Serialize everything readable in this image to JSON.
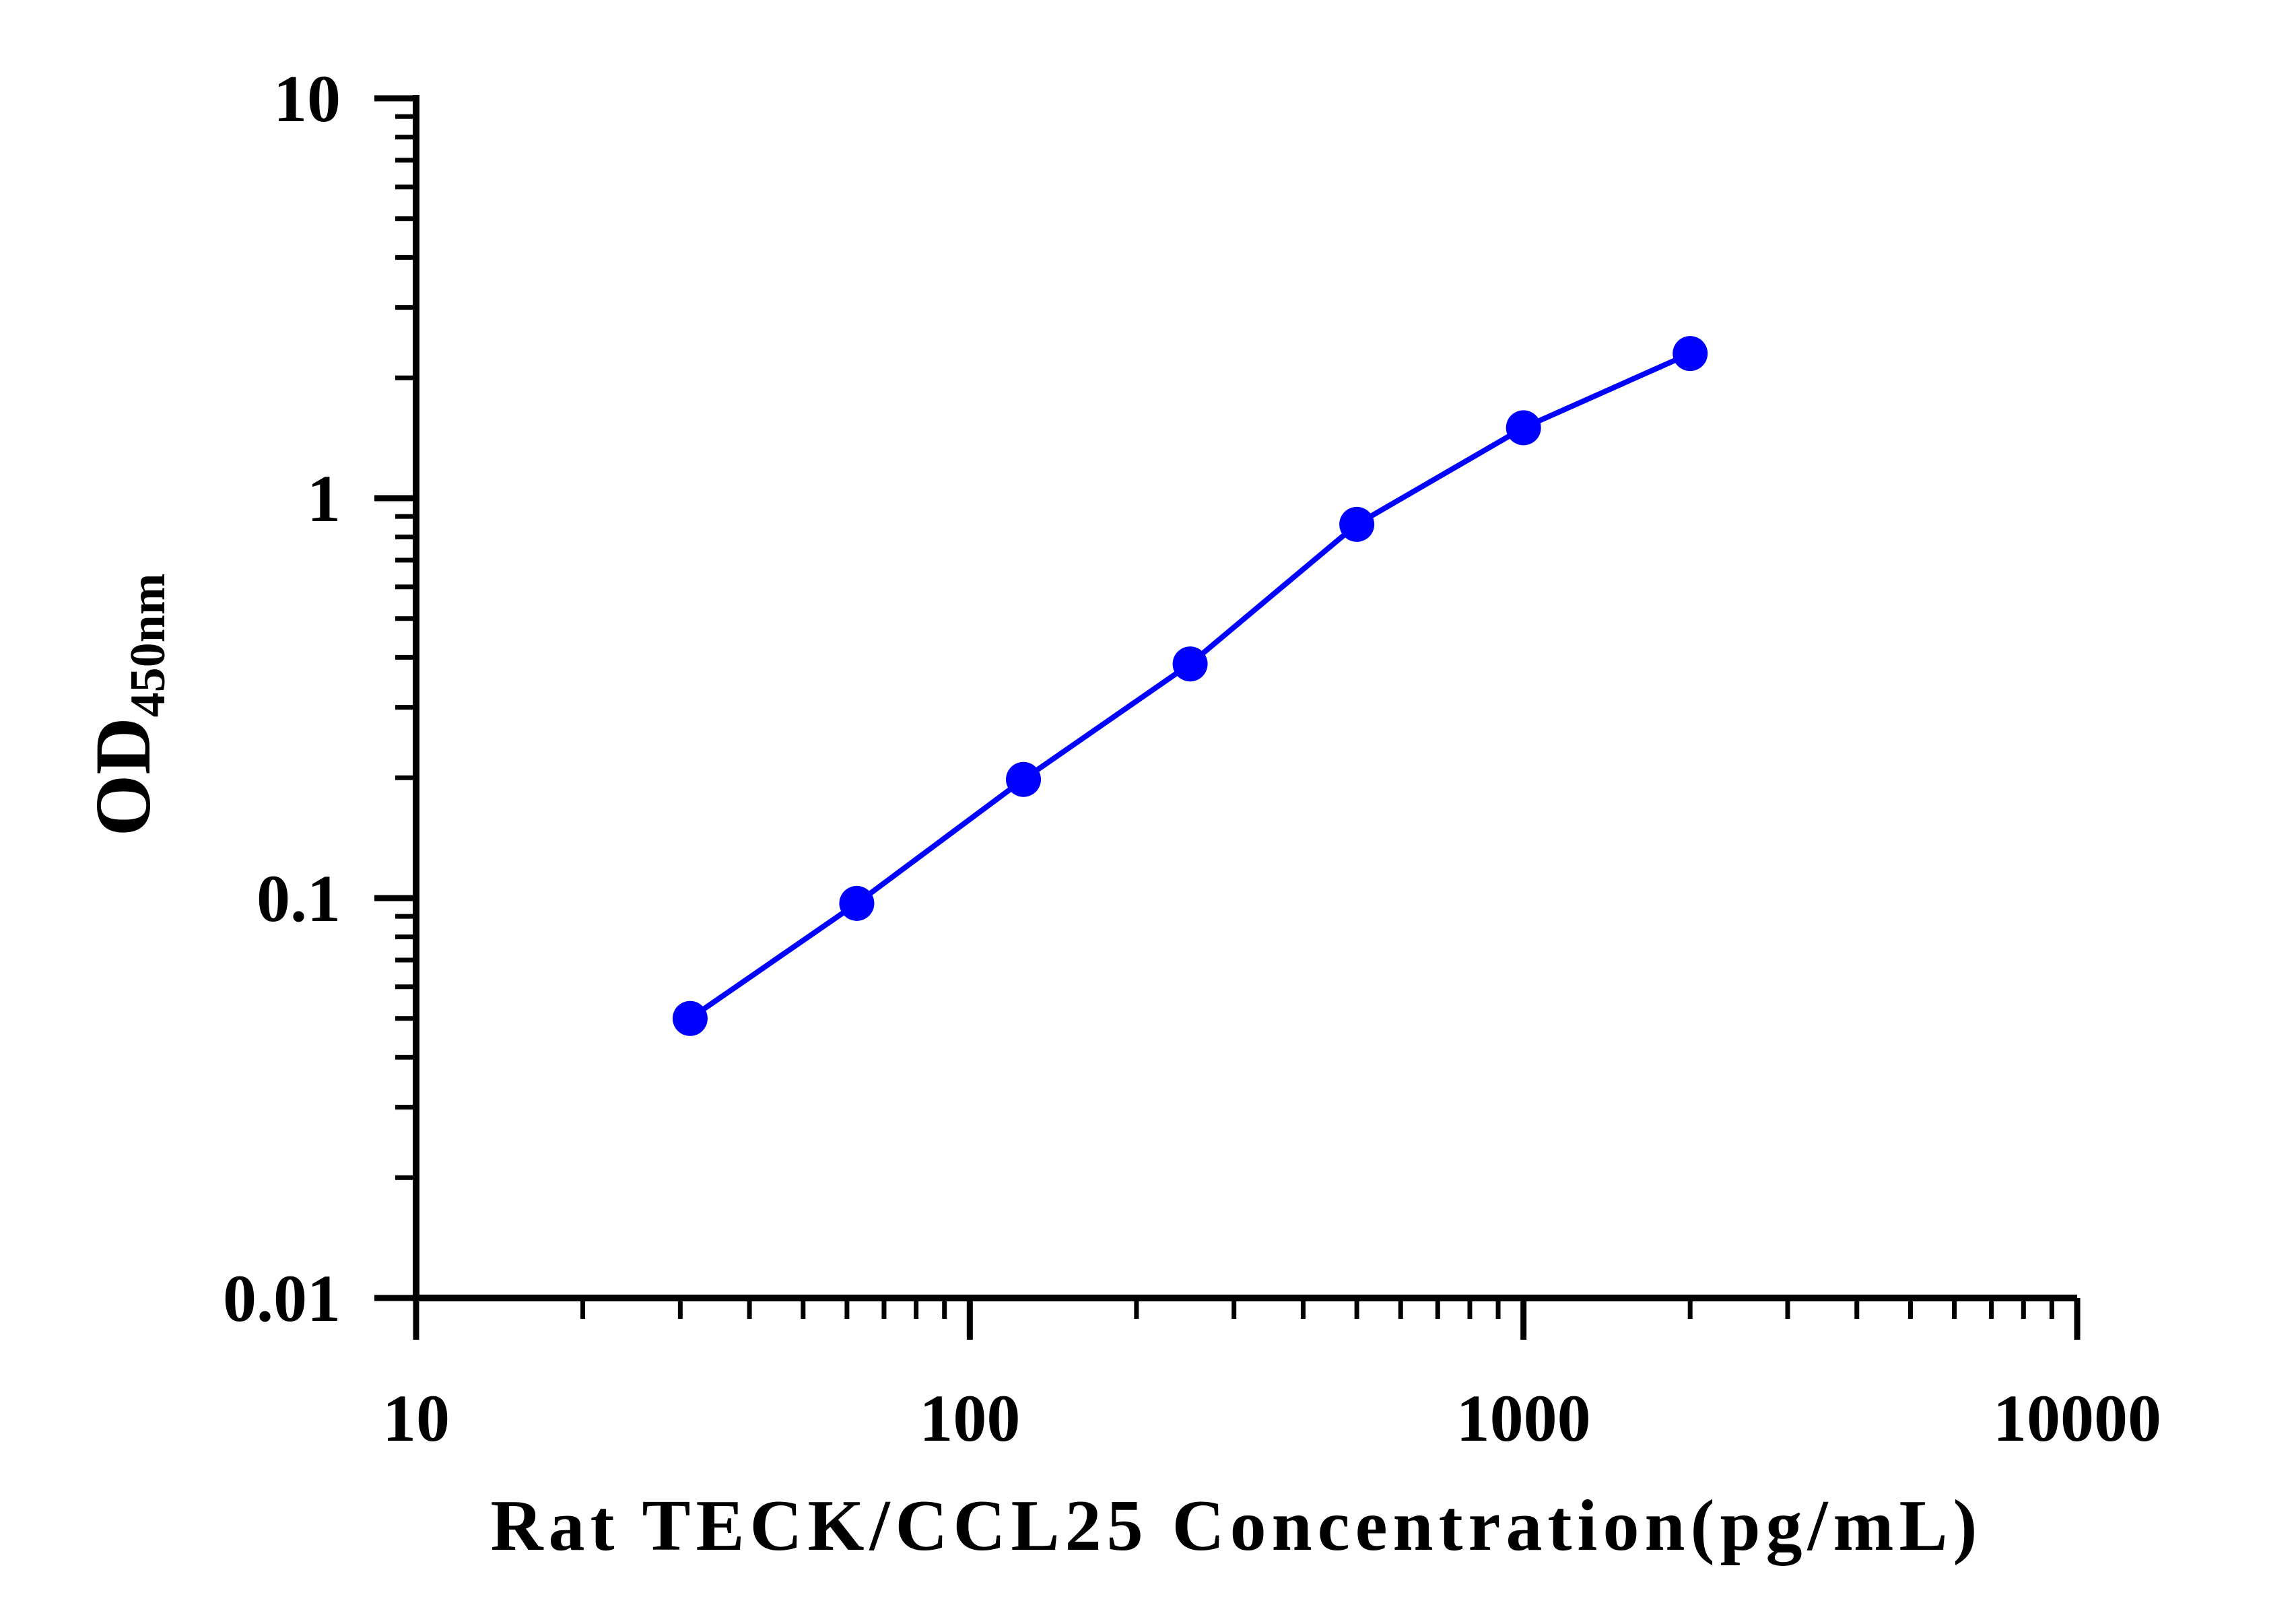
{
  "chart_data": {
    "type": "line",
    "title": "",
    "xlabel": "Rat TECK/CCL25 Concentration(pg/mL)",
    "ylabel": {
      "main": "OD",
      "subscript": "450nm"
    },
    "x_scale": "log",
    "y_scale": "log",
    "xlim": [
      10,
      10000
    ],
    "ylim": [
      0.01,
      10
    ],
    "x_ticks": [
      "10",
      "100",
      "1000",
      "10000"
    ],
    "y_ticks": [
      "0.01",
      "0.1",
      "1",
      "10"
    ],
    "grid": false,
    "legend": "none",
    "series": [
      {
        "color": "#0000ff",
        "marker": "circle",
        "x": [
          31.25,
          62.5,
          125,
          250,
          500,
          1000,
          2000
        ],
        "y": [
          0.05,
          0.097,
          0.198,
          0.385,
          0.86,
          1.5,
          2.3
        ]
      }
    ]
  }
}
